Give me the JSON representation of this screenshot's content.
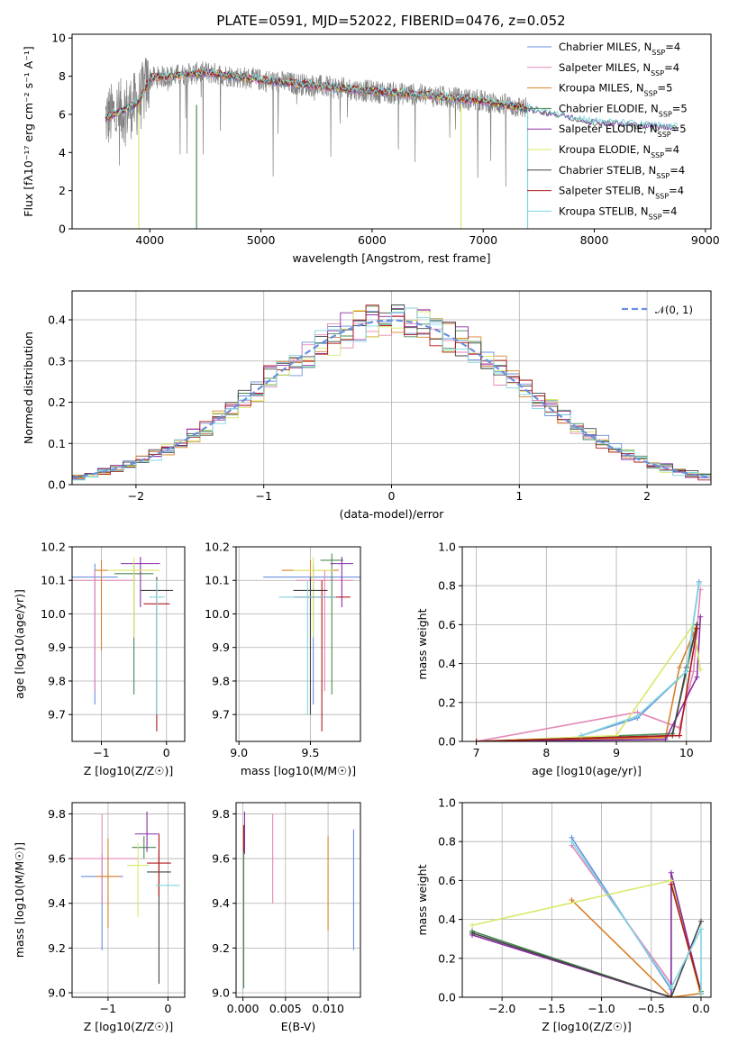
{
  "figure": {
    "title": "PLATE=0591, MJD=52022, FIBERID=0476, z=0.052"
  },
  "series_legend": [
    {
      "name": "Chabrier MILES",
      "nssp": "4",
      "color": "#6a8fdc"
    },
    {
      "name": "Salpeter MILES",
      "nssp": "4",
      "color": "#e387b7"
    },
    {
      "name": "Kroupa MILES",
      "nssp": "5",
      "color": "#d9822b"
    },
    {
      "name": "Chabrier ELODIE",
      "nssp": "5",
      "color": "#4a8a52"
    },
    {
      "name": "Salpeter ELODIE",
      "nssp": "5",
      "color": "#8a2ea3"
    },
    {
      "name": "Kroupa ELODIE",
      "nssp": "4",
      "color": "#d9e86a"
    },
    {
      "name": "Chabrier STELIB",
      "nssp": "4",
      "color": "#444444"
    },
    {
      "name": "Salpeter STELIB",
      "nssp": "4",
      "color": "#b01818"
    },
    {
      "name": "Kroupa STELIB",
      "nssp": "4",
      "color": "#7fd6e0"
    }
  ],
  "chart_data": [
    {
      "id": "spectrum",
      "type": "line",
      "xlabel": "wavelength [Angstrom, rest frame]",
      "xlim": [
        3300,
        9050
      ],
      "ylim": [
        0,
        10.2
      ],
      "xticks": [
        "4000",
        "5000",
        "6000",
        "7000",
        "8000",
        "9000"
      ],
      "yticks": [
        "0",
        "2",
        "4",
        "6",
        "8",
        "10"
      ],
      "data_color": "#808080",
      "data_x_range": [
        3600,
        7400
      ],
      "continuum": [
        [
          3600,
          5.8
        ],
        [
          3900,
          6.6
        ],
        [
          4000,
          7.9
        ],
        [
          4500,
          8.2
        ],
        [
          5000,
          7.8
        ],
        [
          5500,
          7.5
        ],
        [
          6000,
          7.2
        ],
        [
          6500,
          7.0
        ],
        [
          7000,
          6.7
        ],
        [
          7400,
          6.3
        ],
        [
          8000,
          5.6
        ],
        [
          8700,
          5.3
        ]
      ],
      "legend_position": "right"
    },
    {
      "id": "residual_hist",
      "type": "histogram",
      "xlabel": "(data-model)/error",
      "ylabel": "Normed distribution",
      "xlim": [
        -2.5,
        2.5
      ],
      "ylim": [
        0,
        0.47
      ],
      "xticks": [
        "−2",
        "−1",
        "0",
        "1",
        "2"
      ],
      "yticks": [
        "0.0",
        "0.1",
        "0.2",
        "0.3",
        "0.4"
      ],
      "bin_width": 0.1,
      "reference_curve": {
        "name": "𝒩(0, 1)",
        "mean": 0,
        "sigma": 1,
        "color": "#6a8fdc"
      },
      "legend_position": "top-right"
    },
    {
      "id": "age_vs_Z",
      "type": "errorbar",
      "xlabel": "Z [log10(Z/Z☉)]",
      "xlim": [
        -1.45,
        0.28
      ],
      "ylim": [
        9.62,
        10.2
      ],
      "xticks": [
        "−1",
        "0"
      ],
      "yticks": [
        "9.7",
        "9.8",
        "9.9",
        "10.0",
        "10.1",
        "10.2"
      ],
      "points": [
        {
          "series": 0,
          "x": -1.1,
          "y": 10.11,
          "xerr": 0.35,
          "yerr_lo": 0.38,
          "yerr_hi": 0.04
        },
        {
          "series": 1,
          "x": -1.1,
          "y": 10.1,
          "xerr": 0.6,
          "yerr_lo": 0.33,
          "yerr_hi": 0.03
        },
        {
          "series": 2,
          "x": -1.0,
          "y": 10.13,
          "xerr": 0.1,
          "yerr_lo": 0.24,
          "yerr_hi": 0.03
        },
        {
          "series": 3,
          "x": -0.5,
          "y": 10.12,
          "xerr": 0.3,
          "yerr_lo": 0.36,
          "yerr_hi": 0.03
        },
        {
          "series": 4,
          "x": -0.4,
          "y": 10.15,
          "xerr": 0.3,
          "yerr_lo": 0.13,
          "yerr_hi": 0.02
        },
        {
          "series": 5,
          "x": -0.5,
          "y": 10.13,
          "xerr": 0.4,
          "yerr_lo": 0.2,
          "yerr_hi": 0.04
        },
        {
          "series": 6,
          "x": -0.15,
          "y": 10.07,
          "xerr": 0.25,
          "yerr_lo": 0.37,
          "yerr_hi": 0.04
        },
        {
          "series": 7,
          "x": -0.15,
          "y": 10.03,
          "xerr": 0.2,
          "yerr_lo": 0.38,
          "yerr_hi": 0.06
        },
        {
          "series": 8,
          "x": -0.15,
          "y": 10.05,
          "xerr": 0.12,
          "yerr_lo": 0.35,
          "yerr_hi": 0.05
        }
      ],
      "ylabel": "age  [log10(age/yr)]"
    },
    {
      "id": "age_vs_mass",
      "type": "errorbar",
      "xlabel": "mass [log10(M/M☉)]",
      "xlim": [
        8.98,
        9.85
      ],
      "ylim": [
        9.62,
        10.2
      ],
      "xticks": [
        "9.0",
        "9.5"
      ],
      "yticks": [
        "9.7",
        "9.8",
        "9.9",
        "10.0",
        "10.1",
        "10.2"
      ],
      "points": [
        {
          "series": 0,
          "x": 9.52,
          "y": 10.11,
          "xerr": 0.35,
          "yerr_lo": 0.38,
          "yerr_hi": 0.04
        },
        {
          "series": 1,
          "x": 9.6,
          "y": 10.1,
          "xerr": 0.2,
          "yerr_lo": 0.33,
          "yerr_hi": 0.03
        },
        {
          "series": 2,
          "x": 9.5,
          "y": 10.13,
          "xerr": 0.2,
          "yerr_lo": 0.24,
          "yerr_hi": 0.03
        },
        {
          "series": 3,
          "x": 9.65,
          "y": 10.16,
          "xerr": 0.08,
          "yerr_lo": 0.4,
          "yerr_hi": 0.02
        },
        {
          "series": 4,
          "x": 9.72,
          "y": 10.15,
          "xerr": 0.08,
          "yerr_lo": 0.13,
          "yerr_hi": 0.02
        },
        {
          "series": 5,
          "x": 9.52,
          "y": 10.13,
          "xerr": 0.14,
          "yerr_lo": 0.2,
          "yerr_hi": 0.04
        },
        {
          "series": 6,
          "x": 9.5,
          "y": 10.07,
          "xerr": 0.12,
          "yerr_lo": 0.37,
          "yerr_hi": 0.04
        },
        {
          "series": 7,
          "x": 9.58,
          "y": 10.05,
          "xerr": 0.2,
          "yerr_lo": 0.4,
          "yerr_hi": 0.05
        },
        {
          "series": 8,
          "x": 9.48,
          "y": 10.05,
          "xerr": 0.2,
          "yerr_lo": 0.35,
          "yerr_hi": 0.05
        }
      ],
      "ylabel": ""
    },
    {
      "id": "weight_vs_age",
      "type": "line",
      "xlabel": "age  [log10(age/yr)]",
      "ylabel": "mass weight",
      "xlim": [
        6.8,
        10.35
      ],
      "ylim": [
        0,
        1.0
      ],
      "xticks": [
        "7",
        "8",
        "9",
        "10"
      ],
      "yticks": [
        "0.0",
        "0.2",
        "0.4",
        "0.6",
        "0.8",
        "1.0"
      ],
      "series": [
        {
          "series": 0,
          "points": [
            [
              8.5,
              0.03
            ],
            [
              9.3,
              0.12
            ],
            [
              10.0,
              0.36
            ],
            [
              10.18,
              0.82
            ]
          ]
        },
        {
          "series": 1,
          "points": [
            [
              7.0,
              0.0
            ],
            [
              9.3,
              0.15
            ],
            [
              9.9,
              0.07
            ],
            [
              10.1,
              0.36
            ],
            [
              10.2,
              0.78
            ]
          ]
        },
        {
          "series": 2,
          "points": [
            [
              7.0,
              0.0
            ],
            [
              9.7,
              0.02
            ],
            [
              9.9,
              0.38
            ],
            [
              10.15,
              0.6
            ]
          ]
        },
        {
          "series": 3,
          "points": [
            [
              7.0,
              0.0
            ],
            [
              9.8,
              0.04
            ],
            [
              10.0,
              0.36
            ],
            [
              10.15,
              0.6
            ]
          ]
        },
        {
          "series": 4,
          "points": [
            [
              7.0,
              0.0
            ],
            [
              9.7,
              0.01
            ],
            [
              10.15,
              0.33
            ],
            [
              10.2,
              0.64
            ]
          ]
        },
        {
          "series": 5,
          "points": [
            [
              7.0,
              0.0
            ],
            [
              9.0,
              0.03
            ],
            [
              10.1,
              0.6
            ],
            [
              10.2,
              0.37
            ]
          ]
        },
        {
          "series": 6,
          "points": [
            [
              7.0,
              0.0
            ],
            [
              9.8,
              0.03
            ],
            [
              10.0,
              0.38
            ],
            [
              10.15,
              0.6
            ]
          ]
        },
        {
          "series": 7,
          "points": [
            [
              7.0,
              0.0
            ],
            [
              9.9,
              0.03
            ],
            [
              10.15,
              0.58
            ]
          ]
        },
        {
          "series": 8,
          "points": [
            [
              8.5,
              0.03
            ],
            [
              9.3,
              0.13
            ],
            [
              10.0,
              0.36
            ],
            [
              10.18,
              0.81
            ]
          ]
        }
      ]
    },
    {
      "id": "mass_vs_Z",
      "type": "errorbar",
      "xlabel": "Z [log10(Z/Z☉)]",
      "ylabel": "mass [log10(M/M☉)]",
      "xlim": [
        -1.6,
        0.28
      ],
      "ylim": [
        8.98,
        9.85
      ],
      "xticks": [
        "−1",
        "0"
      ],
      "yticks": [
        "9.0",
        "9.2",
        "9.4",
        "9.6",
        "9.8"
      ],
      "points": [
        {
          "series": 0,
          "x": -1.1,
          "y": 9.52,
          "xerr": 0.35,
          "yerr_lo": 0.33,
          "yerr_hi": 0.1
        },
        {
          "series": 1,
          "x": -1.1,
          "y": 9.6,
          "xerr": 0.6,
          "yerr_lo": 0.2,
          "yerr_hi": 0.2
        },
        {
          "series": 2,
          "x": -1.0,
          "y": 9.52,
          "xerr": 0.2,
          "yerr_lo": 0.23,
          "yerr_hi": 0.17
        },
        {
          "series": 3,
          "x": -0.4,
          "y": 9.65,
          "xerr": 0.2,
          "yerr_lo": 0.05,
          "yerr_hi": 0.05
        },
        {
          "series": 4,
          "x": -0.35,
          "y": 9.71,
          "xerr": 0.2,
          "yerr_lo": 0.08,
          "yerr_hi": 0.1
        },
        {
          "series": 5,
          "x": -0.5,
          "y": 9.57,
          "xerr": 0.18,
          "yerr_lo": 0.23,
          "yerr_hi": 0.1
        },
        {
          "series": 6,
          "x": -0.15,
          "y": 9.54,
          "xerr": 0.2,
          "yerr_lo": 0.5,
          "yerr_hi": 0.1
        },
        {
          "series": 7,
          "x": -0.15,
          "y": 9.58,
          "xerr": 0.2,
          "yerr_lo": 0.15,
          "yerr_hi": 0.13
        },
        {
          "series": 8,
          "x": 0.0,
          "y": 9.48,
          "xerr": 0.2,
          "yerr_lo": 0.0,
          "yerr_hi": 0.0
        }
      ]
    },
    {
      "id": "mass_vs_ebv",
      "type": "errorbar",
      "xlabel": "E(B-V)",
      "xlim": [
        -0.0008,
        0.0138
      ],
      "ylim": [
        8.98,
        9.85
      ],
      "xticks": [
        "0.000",
        "0.005",
        "0.010"
      ],
      "yticks": [
        "9.0",
        "9.2",
        "9.4",
        "9.6",
        "9.8"
      ],
      "points": [
        {
          "series": 3,
          "x": 0.0001,
          "y": 9.62,
          "xerr": 0,
          "yerr_lo": 0.6,
          "yerr_hi": 0.05
        },
        {
          "series": 4,
          "x": 0.0002,
          "y": 9.71,
          "xerr": 0,
          "yerr_lo": 0.09,
          "yerr_hi": 0.1
        },
        {
          "series": 7,
          "x": 0.0001,
          "y": 9.7,
          "xerr": 0,
          "yerr_lo": 0.07,
          "yerr_hi": 0.05
        },
        {
          "series": 1,
          "x": 0.0035,
          "y": 9.6,
          "xerr": 0,
          "yerr_lo": 0.2,
          "yerr_hi": 0.2
        },
        {
          "series": 2,
          "x": 0.01,
          "y": 9.5,
          "xerr": 0,
          "yerr_lo": 0.22,
          "yerr_hi": 0.2
        },
        {
          "series": 0,
          "x": 0.013,
          "y": 9.46,
          "xerr": 0,
          "yerr_lo": 0.27,
          "yerr_hi": 0.27
        }
      ],
      "ylabel": ""
    },
    {
      "id": "weight_vs_Z",
      "type": "line",
      "xlabel": "Z [log10(Z/Z☉)]",
      "ylabel": "mass weight",
      "xlim": [
        -2.4,
        0.1
      ],
      "ylim": [
        0,
        1.0
      ],
      "xticks": [
        "−2.0",
        "−1.5",
        "−1.0",
        "−0.5",
        "0.0"
      ],
      "yticks": [
        "0.0",
        "0.2",
        "0.4",
        "0.6",
        "0.8",
        "1.0"
      ],
      "series": [
        {
          "series": 0,
          "points": [
            [
              -1.3,
              0.82
            ],
            [
              -0.3,
              0.04
            ],
            [
              -0.3,
              0.0
            ],
            [
              0.0,
              0.0
            ]
          ]
        },
        {
          "series": 1,
          "points": [
            [
              -1.3,
              0.78
            ],
            [
              -0.3,
              0.07
            ],
            [
              -0.3,
              0.0
            ]
          ]
        },
        {
          "series": 2,
          "points": [
            [
              -1.3,
              0.5
            ],
            [
              -0.3,
              0.0
            ],
            [
              0.0,
              0.02
            ]
          ]
        },
        {
          "series": 3,
          "points": [
            [
              -2.3,
              0.34
            ],
            [
              -0.3,
              0.0
            ],
            [
              -0.3,
              0.6
            ],
            [
              0.0,
              0.03
            ]
          ]
        },
        {
          "series": 4,
          "points": [
            [
              -2.3,
              0.32
            ],
            [
              -0.3,
              0.0
            ],
            [
              -0.3,
              0.64
            ],
            [
              0.0,
              0.02
            ]
          ]
        },
        {
          "series": 5,
          "points": [
            [
              -2.3,
              0.37
            ],
            [
              -0.3,
              0.6
            ],
            [
              0.0,
              0.0
            ]
          ]
        },
        {
          "series": 6,
          "points": [
            [
              -2.3,
              0.33
            ],
            [
              -0.3,
              0.0
            ],
            [
              0.0,
              0.39
            ]
          ]
        },
        {
          "series": 7,
          "points": [
            [
              -0.3,
              0.58
            ],
            [
              0.0,
              0.02
            ]
          ]
        },
        {
          "series": 8,
          "points": [
            [
              -1.3,
              0.8
            ],
            [
              -0.3,
              0.05
            ],
            [
              0.0,
              0.35
            ],
            [
              0.0,
              0.02
            ]
          ]
        }
      ]
    }
  ]
}
